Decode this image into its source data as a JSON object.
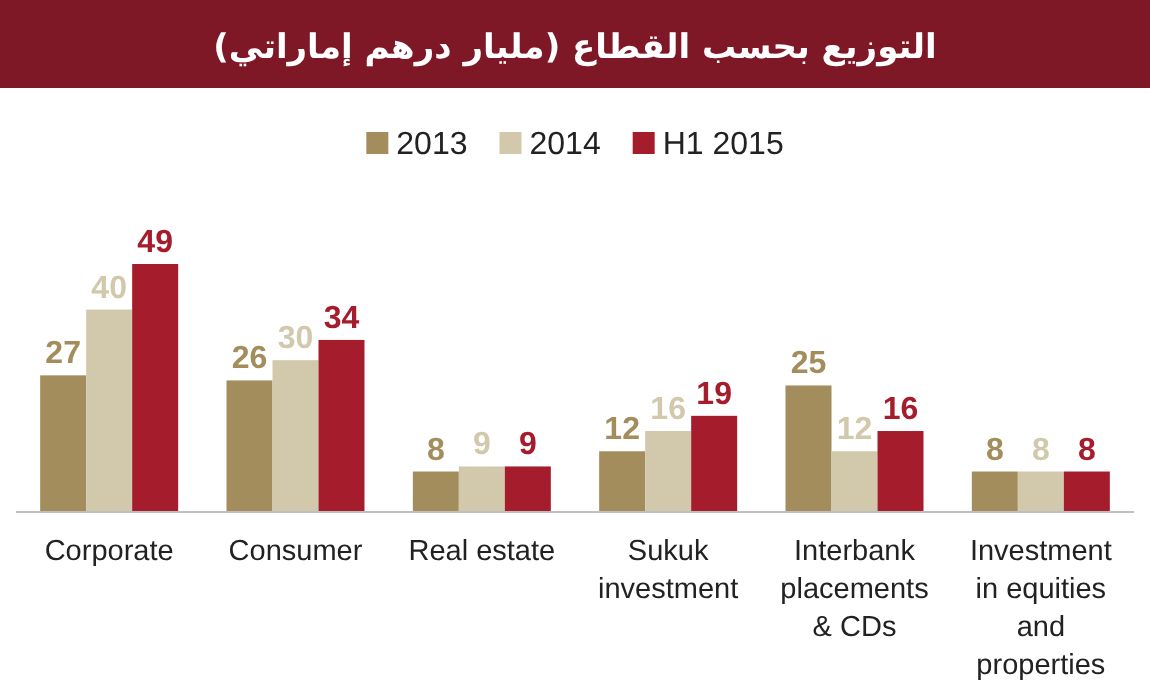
{
  "chart_data": {
    "type": "bar",
    "title": "التوزيع بحسب القطاع (مليار درهم إماراتي)",
    "categories": [
      "Corporate",
      "Consumer",
      "Real estate",
      "Sukuk investment",
      "Interbank placements & CDs",
      "Investment in equities and properties"
    ],
    "series": [
      {
        "name": "2013",
        "color": "#a38d5c",
        "values": [
          27,
          26,
          8,
          12,
          25,
          8
        ]
      },
      {
        "name": "2014",
        "color": "#d2c9ad",
        "values": [
          40,
          30,
          9,
          16,
          12,
          8
        ]
      },
      {
        "name": "H1 2015",
        "color": "#a51d2d",
        "values": [
          49,
          34,
          9,
          19,
          16,
          8
        ]
      }
    ],
    "data_labels": true,
    "legend": "top",
    "grid": false
  }
}
